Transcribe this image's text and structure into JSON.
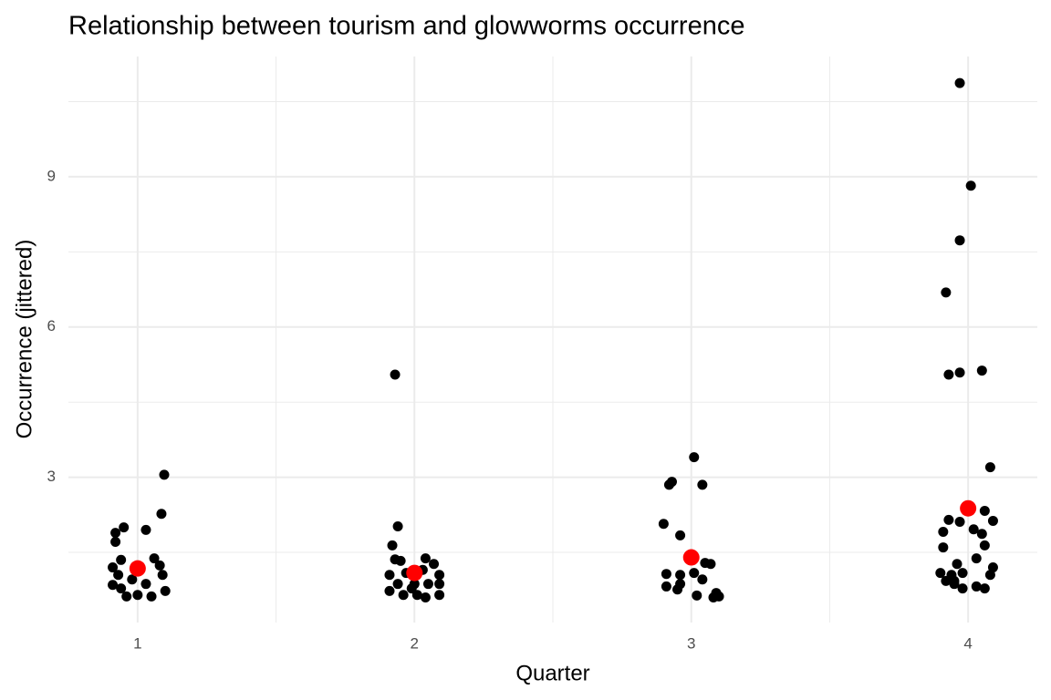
{
  "chart_data": {
    "type": "scatter",
    "title": "Relationship between tourism and glowworms occurrence",
    "x_label": "Quarter",
    "y_label": "Occurrence (jittered)",
    "xlim": [
      0.75,
      4.25
    ],
    "xticks": [
      1,
      2,
      3,
      4
    ],
    "xminor": [
      1.5,
      2.5,
      3.5
    ],
    "ylim": [
      0.1,
      11.4
    ],
    "yticks": [
      3,
      6,
      9
    ],
    "yminor": [
      1.5,
      4.5,
      7.5,
      10.5
    ],
    "grid": true,
    "series": [
      {
        "color": "#000000",
        "x": [
          1.096,
          1.086,
          1.03,
          0.95,
          0.92,
          0.92,
          0.94,
          1.06,
          1.08,
          1.09,
          0.91,
          0.93,
          0.91,
          0.94,
          0.96,
          1.0,
          1.05,
          1.1,
          1.03,
          0.98,
          1.93,
          1.94,
          1.92,
          1.93,
          1.95,
          2.04,
          2.07,
          1.91,
          1.97,
          2.09,
          1.94,
          2.0,
          2.05,
          2.09,
          1.91,
          1.96,
          2.01,
          2.04,
          2.09,
          1.99,
          2.03,
          3.01,
          2.92,
          2.93,
          3.04,
          2.9,
          2.96,
          2.91,
          2.96,
          3.01,
          3.05,
          3.07,
          3.04,
          2.96,
          2.91,
          2.95,
          3.02,
          3.09,
          3.1,
          3.08,
          3.97,
          4.01,
          3.97,
          3.92,
          3.93,
          3.97,
          4.05,
          4.08,
          3.93,
          3.97,
          4.06,
          4.09,
          3.91,
          4.02,
          4.05,
          4.06,
          3.91,
          3.96,
          4.03,
          4.09,
          3.9,
          3.94,
          3.98,
          4.08,
          3.92,
          3.95,
          3.98,
          4.03,
          4.06,
          3.95
        ],
        "y": [
          3.05,
          2.27,
          1.95,
          2.0,
          1.89,
          1.71,
          1.35,
          1.38,
          1.24,
          1.05,
          1.2,
          1.05,
          0.85,
          0.78,
          0.62,
          0.65,
          0.62,
          0.73,
          0.87,
          0.96,
          5.05,
          2.02,
          1.64,
          1.36,
          1.33,
          1.38,
          1.27,
          1.05,
          1.09,
          1.05,
          0.87,
          0.87,
          0.87,
          0.87,
          0.73,
          0.65,
          0.65,
          0.6,
          0.65,
          0.78,
          1.15,
          3.4,
          2.85,
          2.91,
          2.85,
          2.07,
          1.84,
          1.07,
          1.05,
          1.09,
          1.29,
          1.27,
          0.96,
          0.87,
          0.82,
          0.76,
          0.64,
          0.69,
          0.62,
          0.6,
          10.87,
          8.82,
          7.73,
          6.69,
          5.05,
          5.09,
          5.13,
          3.2,
          2.15,
          2.11,
          2.33,
          2.13,
          1.91,
          1.96,
          1.87,
          1.64,
          1.6,
          1.27,
          1.38,
          1.2,
          1.09,
          1.05,
          1.09,
          1.05,
          0.93,
          0.93,
          0.78,
          0.82,
          0.78,
          0.87
        ]
      },
      {
        "color": "#ff0000",
        "x": [
          1,
          2,
          3,
          4
        ],
        "y": [
          1.18,
          1.09,
          1.4,
          2.38
        ]
      }
    ]
  }
}
